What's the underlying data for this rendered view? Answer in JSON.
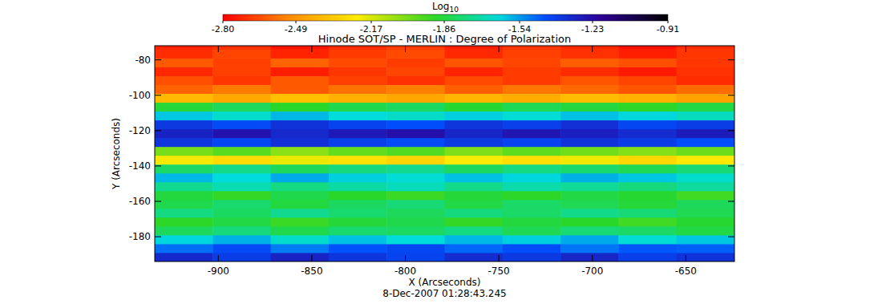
{
  "chart_data": {
    "type": "heatmap",
    "title": "Hinode SOT/SP - MERLIN : Degree of Polarization",
    "xlabel": "X (Arcseconds)",
    "ylabel": "Y (Arcseconds)",
    "annotation": "8-Dec-2007 01:28:43.245",
    "x": [
      -918.5,
      -887.5,
      -856.5,
      -825.5,
      -794.5,
      -763.5,
      -732.5,
      -701.5,
      -670.5,
      -639.5
    ],
    "y": [
      -191.5,
      -186.5,
      -181.5,
      -176.5,
      -171.5,
      -166.5,
      -161.5,
      -156.5,
      -151.5,
      -146.5,
      -141.5,
      -136.5,
      -131.5,
      -126.5,
      -121.5,
      -116.5,
      -111.5,
      -106.5,
      -101.5,
      -96.5,
      -91.5,
      -86.5,
      -81.5,
      -76.5,
      -71.5
    ],
    "values": [
      [
        -1.32,
        -1.38,
        -1.3,
        -1.36,
        -1.4,
        -1.33,
        -1.37,
        -1.31,
        -1.39,
        -1.35
      ],
      [
        -1.48,
        -1.42,
        -1.5,
        -1.44,
        -1.41,
        -1.47,
        -1.43,
        -1.49,
        -1.45,
        -1.46
      ],
      [
        -1.62,
        -1.57,
        -1.65,
        -1.59,
        -1.63,
        -1.58,
        -1.61,
        -1.56,
        -1.64,
        -1.6
      ],
      [
        -1.82,
        -1.77,
        -1.84,
        -1.79,
        -1.81,
        -1.76,
        -1.83,
        -1.78,
        -1.8,
        -1.85
      ],
      [
        -1.9,
        -1.85,
        -1.92,
        -1.87,
        -1.84,
        -1.91,
        -1.86,
        -1.89,
        -1.93,
        -1.88
      ],
      [
        -1.76,
        -1.81,
        -1.74,
        -1.79,
        -1.82,
        -1.77,
        -1.8,
        -1.75,
        -1.78,
        -1.83
      ],
      [
        -1.84,
        -1.79,
        -1.86,
        -1.81,
        -1.78,
        -1.85,
        -1.8,
        -1.83,
        -1.87,
        -1.82
      ],
      [
        -1.86,
        -1.91,
        -1.84,
        -1.89,
        -1.92,
        -1.87,
        -1.9,
        -1.85,
        -1.88,
        -1.93
      ],
      [
        -1.74,
        -1.69,
        -1.76,
        -1.71,
        -1.68,
        -1.75,
        -1.7,
        -1.73,
        -1.77,
        -1.72
      ],
      [
        -1.58,
        -1.63,
        -1.56,
        -1.61,
        -1.64,
        -1.59,
        -1.62,
        -1.57,
        -1.6,
        -1.65
      ],
      [
        -1.8,
        -1.75,
        -1.82,
        -1.77,
        -1.74,
        -1.81,
        -1.76,
        -1.79,
        -1.83,
        -1.78
      ],
      [
        -2.22,
        -2.28,
        -2.2,
        -2.26,
        -2.3,
        -2.23,
        -2.27,
        -2.21,
        -2.29,
        -2.24
      ],
      [
        -2.02,
        -1.97,
        -2.05,
        -1.99,
        -1.96,
        -2.03,
        -1.98,
        -2.01,
        -2.04,
        -2.0
      ],
      [
        -1.36,
        -1.41,
        -1.34,
        -1.39,
        -1.42,
        -1.37,
        -1.4,
        -1.35,
        -1.38,
        -1.43
      ],
      [
        -1.3,
        -1.25,
        -1.32,
        -1.27,
        -1.24,
        -1.31,
        -1.26,
        -1.29,
        -1.33,
        -1.28
      ],
      [
        -1.37,
        -1.42,
        -1.35,
        -1.4,
        -1.43,
        -1.36,
        -1.39,
        -1.34,
        -1.41,
        -1.38
      ],
      [
        -1.6,
        -1.65,
        -1.58,
        -1.63,
        -1.66,
        -1.61,
        -1.64,
        -1.59,
        -1.62,
        -1.67
      ],
      [
        -1.87,
        -1.82,
        -1.89,
        -1.84,
        -1.81,
        -1.88,
        -1.83,
        -1.86,
        -1.9,
        -1.85
      ],
      [
        -2.38,
        -2.43,
        -2.36,
        -2.41,
        -2.44,
        -2.39,
        -2.42,
        -2.37,
        -2.4,
        -2.45
      ],
      [
        -2.6,
        -2.55,
        -2.62,
        -2.57,
        -2.54,
        -2.61,
        -2.56,
        -2.59,
        -2.63,
        -2.58
      ],
      [
        -2.64,
        -2.69,
        -2.62,
        -2.67,
        -2.7,
        -2.65,
        -2.68,
        -2.63,
        -2.66,
        -2.71
      ],
      [
        -2.72,
        -2.67,
        -2.74,
        -2.69,
        -2.66,
        -2.73,
        -2.68,
        -2.71,
        -2.75,
        -2.7
      ],
      [
        -2.62,
        -2.67,
        -2.6,
        -2.65,
        -2.68,
        -2.63,
        -2.66,
        -2.61,
        -2.64,
        -2.69
      ],
      [
        -2.71,
        -2.66,
        -2.73,
        -2.68,
        -2.65,
        -2.72,
        -2.67,
        -2.7,
        -2.74,
        -2.69
      ],
      [
        -2.73,
        -2.7,
        -2.76,
        -2.71,
        -2.68,
        -2.74,
        -2.69,
        -2.72,
        -2.77,
        -2.71
      ]
    ],
    "xlim": [
      -934,
      -624
    ],
    "ylim": [
      -194,
      -72
    ],
    "xticks": [
      -900,
      -850,
      -800,
      -750,
      -700,
      -650
    ],
    "yticks": [
      -180,
      -160,
      -140,
      -120,
      -100,
      -80
    ],
    "colorbar": {
      "label": "Log10",
      "range": [
        -2.8,
        -0.91
      ],
      "ticks": [
        {
          "value": -2.8,
          "label": "-2.80"
        },
        -2.49,
        -2.17,
        -1.86,
        -1.54,
        -1.23,
        -0.91
      ]
    }
  }
}
